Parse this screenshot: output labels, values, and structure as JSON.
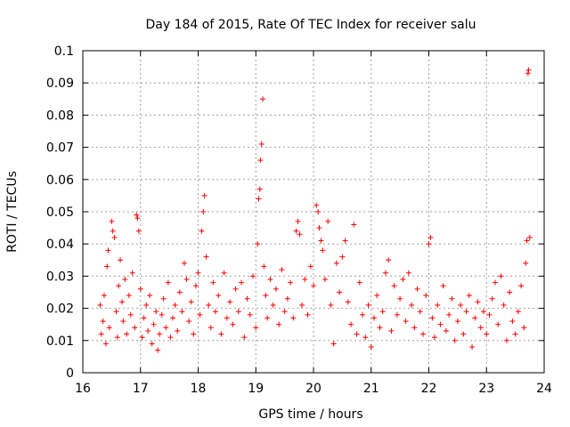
{
  "chart_data": {
    "type": "scatter",
    "title": "Day 184 of 2015, Rate Of TEC Index for receiver salu",
    "xlabel": "GPS time / hours",
    "ylabel": "ROTI / TECUs",
    "xlim": [
      16,
      24
    ],
    "ylim": [
      0,
      0.1
    ],
    "xticks": [
      "16",
      "17",
      "18",
      "19",
      "20",
      "21",
      "22",
      "23",
      "24"
    ],
    "yticks": [
      "0",
      "0.01",
      "0.02",
      "0.03",
      "0.04",
      "0.05",
      "0.06",
      "0.07",
      "0.08",
      "0.09",
      "0.1"
    ],
    "xtick_values": [
      16,
      17,
      18,
      19,
      20,
      21,
      22,
      23,
      24
    ],
    "ytick_values": [
      0,
      0.01,
      0.02,
      0.03,
      0.04,
      0.05,
      0.06,
      0.07,
      0.08,
      0.09,
      0.1
    ],
    "grid": true,
    "marker": "+",
    "color": "#ff0000",
    "series": [
      {
        "name": "ROTI",
        "points": [
          [
            16.3,
            0.021
          ],
          [
            16.32,
            0.012
          ],
          [
            16.35,
            0.016
          ],
          [
            16.37,
            0.024
          ],
          [
            16.4,
            0.009
          ],
          [
            16.42,
            0.033
          ],
          [
            16.44,
            0.038
          ],
          [
            16.46,
            0.014
          ],
          [
            16.5,
            0.047
          ],
          [
            16.52,
            0.044
          ],
          [
            16.55,
            0.042
          ],
          [
            16.58,
            0.019
          ],
          [
            16.6,
            0.011
          ],
          [
            16.62,
            0.027
          ],
          [
            16.65,
            0.035
          ],
          [
            16.68,
            0.022
          ],
          [
            16.7,
            0.016
          ],
          [
            16.73,
            0.029
          ],
          [
            16.76,
            0.012
          ],
          [
            16.8,
            0.024
          ],
          [
            16.83,
            0.018
          ],
          [
            16.86,
            0.031
          ],
          [
            16.9,
            0.014
          ],
          [
            16.93,
            0.049
          ],
          [
            16.95,
            0.048
          ],
          [
            16.97,
            0.044
          ],
          [
            17.0,
            0.026
          ],
          [
            17.03,
            0.011
          ],
          [
            17.06,
            0.017
          ],
          [
            17.1,
            0.021
          ],
          [
            17.13,
            0.013
          ],
          [
            17.16,
            0.024
          ],
          [
            17.2,
            0.009
          ],
          [
            17.23,
            0.015
          ],
          [
            17.27,
            0.019
          ],
          [
            17.3,
            0.007
          ],
          [
            17.33,
            0.012
          ],
          [
            17.37,
            0.018
          ],
          [
            17.4,
            0.023
          ],
          [
            17.44,
            0.014
          ],
          [
            17.48,
            0.028
          ],
          [
            17.52,
            0.011
          ],
          [
            17.56,
            0.017
          ],
          [
            17.6,
            0.021
          ],
          [
            17.64,
            0.013
          ],
          [
            17.68,
            0.025
          ],
          [
            17.72,
            0.019
          ],
          [
            17.76,
            0.034
          ],
          [
            17.8,
            0.029
          ],
          [
            17.84,
            0.016
          ],
          [
            17.88,
            0.022
          ],
          [
            17.92,
            0.012
          ],
          [
            17.96,
            0.027
          ],
          [
            18.0,
            0.031
          ],
          [
            18.03,
            0.018
          ],
          [
            18.06,
            0.044
          ],
          [
            18.09,
            0.05
          ],
          [
            18.11,
            0.055
          ],
          [
            18.14,
            0.036
          ],
          [
            18.18,
            0.021
          ],
          [
            18.22,
            0.014
          ],
          [
            18.26,
            0.028
          ],
          [
            18.3,
            0.019
          ],
          [
            18.35,
            0.024
          ],
          [
            18.4,
            0.012
          ],
          [
            18.45,
            0.031
          ],
          [
            18.5,
            0.017
          ],
          [
            18.55,
            0.022
          ],
          [
            18.6,
            0.015
          ],
          [
            18.65,
            0.026
          ],
          [
            18.7,
            0.019
          ],
          [
            18.75,
            0.028
          ],
          [
            18.8,
            0.011
          ],
          [
            18.85,
            0.023
          ],
          [
            18.9,
            0.018
          ],
          [
            18.95,
            0.03
          ],
          [
            19.0,
            0.014
          ],
          [
            19.03,
            0.04
          ],
          [
            19.05,
            0.054
          ],
          [
            19.07,
            0.057
          ],
          [
            19.08,
            0.066
          ],
          [
            19.1,
            0.071
          ],
          [
            19.12,
            0.085
          ],
          [
            19.14,
            0.033
          ],
          [
            19.17,
            0.024
          ],
          [
            19.2,
            0.017
          ],
          [
            19.25,
            0.029
          ],
          [
            19.3,
            0.021
          ],
          [
            19.35,
            0.026
          ],
          [
            19.4,
            0.015
          ],
          [
            19.45,
            0.032
          ],
          [
            19.5,
            0.019
          ],
          [
            19.55,
            0.023
          ],
          [
            19.6,
            0.028
          ],
          [
            19.65,
            0.017
          ],
          [
            19.7,
            0.044
          ],
          [
            19.73,
            0.047
          ],
          [
            19.76,
            0.043
          ],
          [
            19.8,
            0.021
          ],
          [
            19.85,
            0.029
          ],
          [
            19.9,
            0.018
          ],
          [
            19.95,
            0.033
          ],
          [
            20.0,
            0.027
          ],
          [
            20.05,
            0.052
          ],
          [
            20.08,
            0.05
          ],
          [
            20.1,
            0.045
          ],
          [
            20.13,
            0.041
          ],
          [
            20.16,
            0.038
          ],
          [
            20.2,
            0.029
          ],
          [
            20.25,
            0.047
          ],
          [
            20.3,
            0.021
          ],
          [
            20.35,
            0.009
          ],
          [
            20.4,
            0.034
          ],
          [
            20.45,
            0.025
          ],
          [
            20.5,
            0.036
          ],
          [
            20.55,
            0.041
          ],
          [
            20.6,
            0.022
          ],
          [
            20.65,
            0.015
          ],
          [
            20.7,
            0.046
          ],
          [
            20.75,
            0.012
          ],
          [
            20.8,
            0.028
          ],
          [
            20.85,
            0.018
          ],
          [
            20.9,
            0.011
          ],
          [
            20.95,
            0.021
          ],
          [
            21.0,
            0.008
          ],
          [
            21.05,
            0.017
          ],
          [
            21.1,
            0.024
          ],
          [
            21.15,
            0.014
          ],
          [
            21.2,
            0.019
          ],
          [
            21.25,
            0.031
          ],
          [
            21.3,
            0.035
          ],
          [
            21.35,
            0.013
          ],
          [
            21.4,
            0.027
          ],
          [
            21.45,
            0.018
          ],
          [
            21.5,
            0.023
          ],
          [
            21.55,
            0.029
          ],
          [
            21.6,
            0.016
          ],
          [
            21.65,
            0.031
          ],
          [
            21.7,
            0.021
          ],
          [
            21.75,
            0.014
          ],
          [
            21.8,
            0.026
          ],
          [
            21.85,
            0.019
          ],
          [
            21.9,
            0.012
          ],
          [
            21.95,
            0.024
          ],
          [
            22.0,
            0.04
          ],
          [
            22.03,
            0.042
          ],
          [
            22.06,
            0.017
          ],
          [
            22.1,
            0.011
          ],
          [
            22.15,
            0.021
          ],
          [
            22.2,
            0.015
          ],
          [
            22.25,
            0.027
          ],
          [
            22.3,
            0.013
          ],
          [
            22.35,
            0.018
          ],
          [
            22.4,
            0.023
          ],
          [
            22.45,
            0.01
          ],
          [
            22.5,
            0.016
          ],
          [
            22.55,
            0.021
          ],
          [
            22.6,
            0.012
          ],
          [
            22.65,
            0.019
          ],
          [
            22.7,
            0.024
          ],
          [
            22.75,
            0.008
          ],
          [
            22.8,
            0.017
          ],
          [
            22.85,
            0.022
          ],
          [
            22.9,
            0.014
          ],
          [
            22.95,
            0.019
          ],
          [
            23.0,
            0.012
          ],
          [
            23.05,
            0.018
          ],
          [
            23.1,
            0.023
          ],
          [
            23.15,
            0.028
          ],
          [
            23.2,
            0.015
          ],
          [
            23.25,
            0.03
          ],
          [
            23.3,
            0.021
          ],
          [
            23.35,
            0.01
          ],
          [
            23.4,
            0.025
          ],
          [
            23.45,
            0.016
          ],
          [
            23.5,
            0.012
          ],
          [
            23.55,
            0.019
          ],
          [
            23.6,
            0.027
          ],
          [
            23.65,
            0.014
          ],
          [
            23.68,
            0.034
          ],
          [
            23.7,
            0.041
          ],
          [
            23.72,
            0.093
          ],
          [
            23.73,
            0.094
          ],
          [
            23.75,
            0.042
          ]
        ]
      }
    ]
  }
}
